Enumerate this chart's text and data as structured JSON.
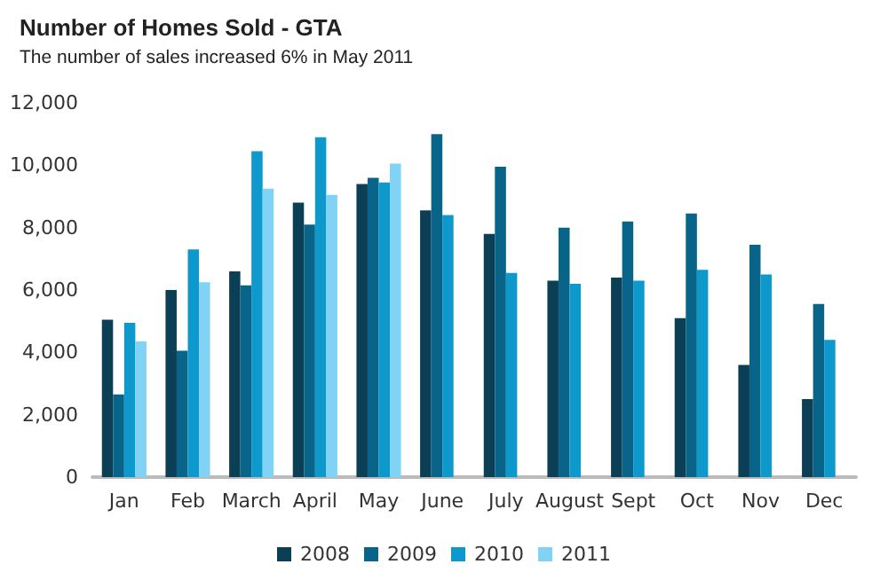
{
  "chart_data": {
    "type": "bar",
    "title": "Number of Homes Sold - GTA",
    "subtitle": "The number of sales increased 6% in May 2011",
    "categories": [
      "Jan",
      "Feb",
      "March",
      "April",
      "May",
      "June",
      "July",
      "August",
      "Sept",
      "Oct",
      "Nov",
      "Dec"
    ],
    "series": [
      {
        "name": "2008",
        "color": "#0b3f55",
        "values": [
          5050,
          6000,
          6600,
          8800,
          9400,
          8550,
          7800,
          6300,
          6400,
          5100,
          3600,
          2500
        ]
      },
      {
        "name": "2009",
        "color": "#086488",
        "values": [
          2650,
          4050,
          6150,
          8100,
          9600,
          11000,
          9950,
          8000,
          8200,
          8450,
          7450,
          5550
        ]
      },
      {
        "name": "2010",
        "color": "#0e99cc",
        "values": [
          4950,
          7300,
          10450,
          10900,
          9450,
          8400,
          6550,
          6200,
          6300,
          6650,
          6500,
          4400
        ]
      },
      {
        "name": "2011",
        "color": "#80d3f5",
        "values": [
          4350,
          6250,
          9250,
          9050,
          10050,
          null,
          null,
          null,
          null,
          null,
          null,
          null
        ]
      }
    ],
    "ylim": [
      0,
      12000
    ],
    "yticks": [
      0,
      {
        "value": 2000,
        "label": "2,000"
      },
      {
        "value": 4000,
        "label": "4,000"
      },
      {
        "value": 6000,
        "label": "6,000"
      },
      {
        "value": 8000,
        "label": "8,000"
      },
      {
        "value": 10000,
        "label": "10,000"
      },
      {
        "value": 12000,
        "label": "12,000"
      }
    ],
    "grid": false,
    "legend": "bottom"
  }
}
